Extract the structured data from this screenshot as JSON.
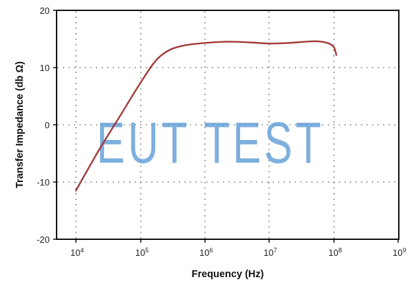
{
  "chart_data": {
    "type": "line",
    "title": "",
    "xlabel": "Frequency (Hz)",
    "ylabel": "Transfer Impedance (db Ω)",
    "xscale": "log",
    "xlim": [
      10000,
      1000000000
    ],
    "ylim": [
      -20,
      20
    ],
    "x_ticks": [
      "10^4",
      "10^5",
      "10^6",
      "10^7",
      "10^8",
      "10^9"
    ],
    "y_ticks": [
      "20",
      "10",
      "0",
      "-10",
      "-20"
    ],
    "grid": "dotted",
    "legend": null,
    "series": [
      {
        "name": "Transfer Impedance",
        "color": "#a33a3a",
        "x": [
          10000,
          20000,
          30000,
          50000,
          70000,
          100000,
          150000,
          200000,
          300000,
          500000,
          1000000,
          2000000,
          3000000,
          5000000,
          10000000,
          20000000,
          50000000,
          80000000,
          100000000,
          110000000
        ],
        "y": [
          -11.5,
          -5.5,
          -2.2,
          1.8,
          4.5,
          7.3,
          10.3,
          11.9,
          13.2,
          13.9,
          14.3,
          14.5,
          14.5,
          14.4,
          14.2,
          14.3,
          14.6,
          14.3,
          13.6,
          12.2
        ]
      }
    ],
    "annotations": [
      "EUT TEST (watermark)"
    ]
  },
  "labels": {
    "xlabel": "Frequency (Hz)",
    "ylabel": "Transfer Impedance (db Ω)",
    "watermark": "EUT TEST",
    "y_ticks": [
      "20",
      "10",
      "0",
      "-10",
      "-20"
    ],
    "x_tick_base": "10",
    "x_tick_exps": [
      "4",
      "5",
      "6",
      "7",
      "8",
      "9"
    ]
  }
}
